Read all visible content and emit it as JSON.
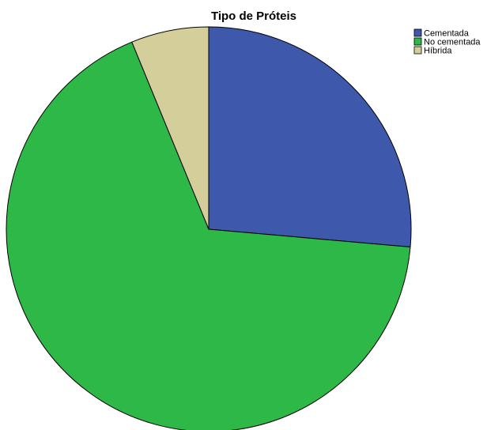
{
  "chart_data": {
    "type": "pie",
    "title": "Tipo de Próteis",
    "legend_position": "top-right",
    "start_angle": "12 o'clock",
    "direction": "clockwise",
    "slices": [
      {
        "label": "Cementada",
        "value": 26.4,
        "color": "#3e58ac"
      },
      {
        "label": "No cementada",
        "value": 67.4,
        "color": "#2eb848"
      },
      {
        "label": "Híbrida",
        "value": 6.2,
        "color": "#d4ce9a"
      }
    ]
  }
}
